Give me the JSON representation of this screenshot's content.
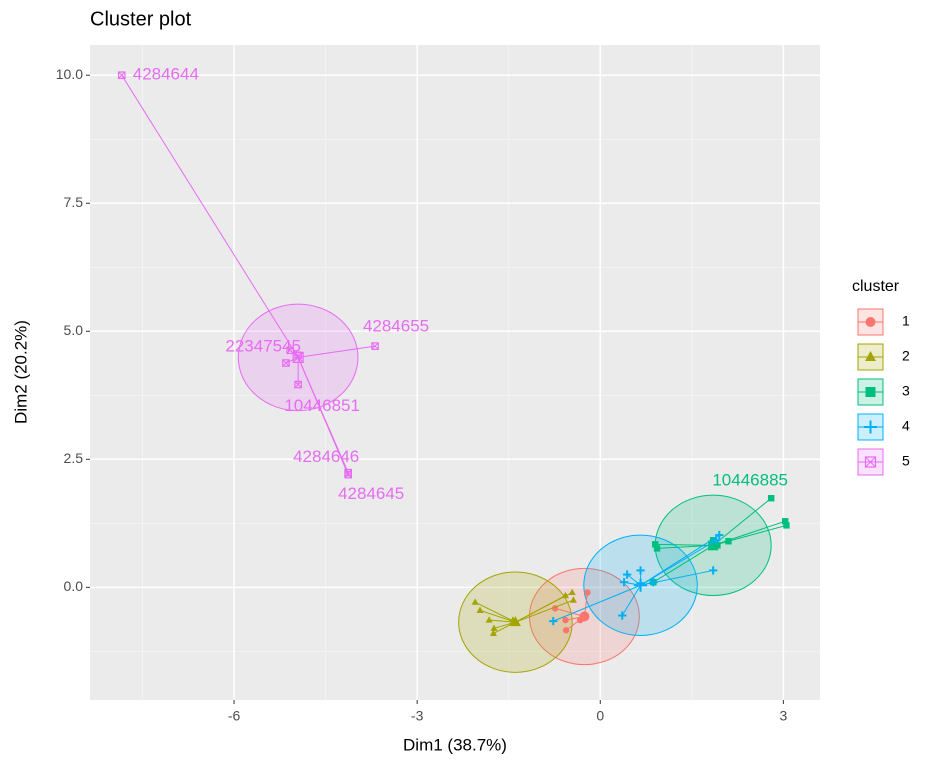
{
  "chart_data": {
    "type": "scatter",
    "title": "Cluster plot",
    "x_label": "Dim1 (38.7%)",
    "y_label": "Dim2 (20.2%)",
    "legend_title": "cluster",
    "xlim": [
      -8.36,
      3.6
    ],
    "ylim": [
      -2.2,
      10.59
    ],
    "xticks": [
      -6,
      -3,
      0,
      3
    ],
    "yticks": [
      {
        "value": 0,
        "label": "0.0"
      },
      {
        "value": 2.5,
        "label": "2.5"
      },
      {
        "value": 5,
        "label": "5.0"
      },
      {
        "value": 7.5,
        "label": "7.5"
      },
      {
        "value": 10,
        "label": "10.0"
      }
    ],
    "grid": true,
    "series": [
      {
        "name": "1",
        "color": "#F8766D",
        "shape": "circle",
        "x": [
          -0.74,
          -0.57,
          -0.56,
          -0.33,
          -0.28,
          -0.21
        ],
        "y": [
          -0.41,
          -0.64,
          -0.84,
          -0.64,
          -0.57,
          -0.1
        ],
        "labels": [
          null,
          null,
          null,
          null,
          null,
          null
        ],
        "ellipse": {
          "cx": -0.26,
          "cy": -0.57,
          "rx": 0.9,
          "ry": 0.94
        }
      },
      {
        "name": "2",
        "color": "#A3A500",
        "shape": "triangle",
        "x": [
          -2.05,
          -1.97,
          -1.82,
          -1.75,
          -1.74,
          -1.43,
          -0.57,
          -0.46,
          -0.44
        ],
        "y": [
          -0.29,
          -0.45,
          -0.64,
          -0.9,
          -0.8,
          -0.64,
          -0.16,
          -0.1,
          -0.25
        ],
        "labels": [
          null,
          null,
          null,
          null,
          null,
          null,
          null,
          null,
          null
        ],
        "ellipse": {
          "cx": -1.39,
          "cy": -0.68,
          "rx": 0.93,
          "ry": 0.98
        }
      },
      {
        "name": "3",
        "color": "#00BF7D",
        "shape": "square",
        "x": [
          2.8,
          3.03,
          3.05,
          1.85,
          2.1,
          0.9,
          0.93,
          1.92,
          0.87
        ],
        "y": [
          1.74,
          1.29,
          1.21,
          0.92,
          0.9,
          0.84,
          0.76,
          0.82,
          0.1
        ],
        "labels": [
          "10446885",
          null,
          null,
          null,
          null,
          null,
          null,
          null,
          null
        ],
        "ellipse": {
          "cx": 1.85,
          "cy": 0.82,
          "rx": 0.95,
          "ry": 0.98
        }
      },
      {
        "name": "4",
        "color": "#00B0F6",
        "shape": "plus",
        "x": [
          1.95,
          1.9,
          1.85,
          0.87,
          0.66,
          0.44,
          0.66,
          0.39,
          0.36,
          -0.77
        ],
        "y": [
          1.02,
          0.92,
          0.33,
          0.1,
          0.08,
          0.25,
          0.33,
          0.1,
          -0.55,
          -0.66
        ],
        "labels": [
          null,
          null,
          null,
          null,
          null,
          null,
          null,
          null,
          null,
          null
        ],
        "ellipse": {
          "cx": 0.66,
          "cy": 0.04,
          "rx": 0.93,
          "ry": 0.98
        }
      },
      {
        "name": "5",
        "color": "#E76BF3",
        "shape": "square-cross",
        "x": [
          -7.84,
          -3.69,
          -5.08,
          -4.95,
          -5.15,
          -4.95,
          -4.13,
          -4.13
        ],
        "y": [
          10.0,
          4.71,
          4.63,
          4.53,
          4.38,
          3.96,
          2.24,
          2.2
        ],
        "labels": [
          "4284644",
          "4284655",
          "22347545",
          null,
          null,
          "10446851",
          "4284646",
          "4284645"
        ],
        "ellipse": {
          "cx": -4.95,
          "cy": 4.49,
          "rx": 0.98,
          "ry": 1.04
        }
      }
    ]
  }
}
